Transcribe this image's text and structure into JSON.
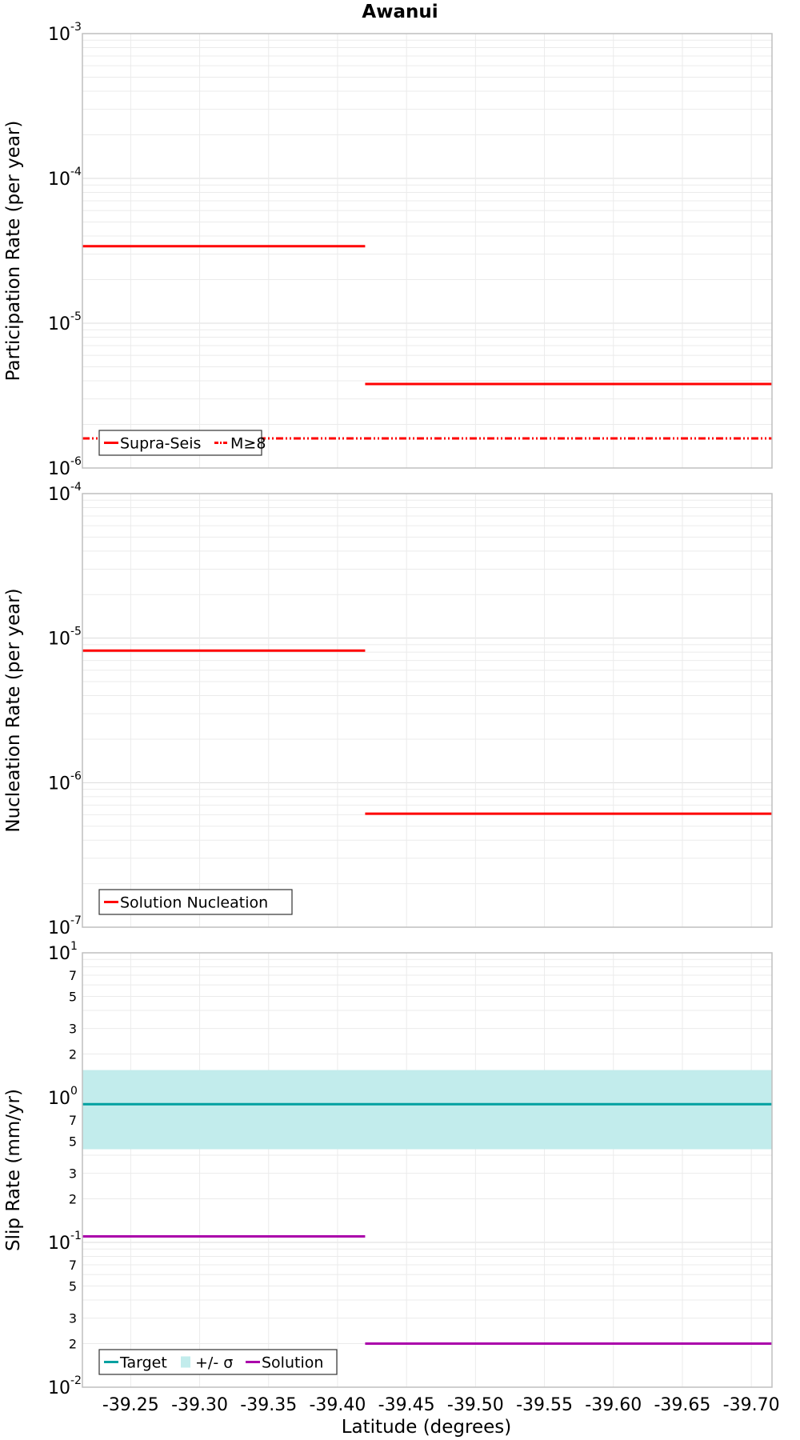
{
  "title": "Awanui",
  "xlabel": "Latitude (degrees)",
  "x_ticks": [
    "-39.25",
    "-39.30",
    "-39.35",
    "-39.40",
    "-39.45",
    "-39.50",
    "-39.55",
    "-39.60",
    "-39.65",
    "-39.70"
  ],
  "colors": {
    "red": "#ff0000",
    "teal": "#00a0a0",
    "band": "#c2ecec",
    "purple": "#aa00aa",
    "grid": "#ebebeb",
    "frame": "#bfbfbf"
  },
  "chart_data": [
    {
      "type": "line",
      "ylabel": "Participation Rate (per year)",
      "yscale": "log",
      "ylim": [
        1e-06,
        0.001
      ],
      "xlim": [
        -39.215,
        -39.715
      ],
      "y_ticks": [
        {
          "base": "10",
          "exp": "-6"
        },
        {
          "base": "10",
          "exp": "-5"
        },
        {
          "base": "10",
          "exp": "-4"
        },
        {
          "base": "10",
          "exp": "-3"
        }
      ],
      "series": [
        {
          "name": "Supra-Seis",
          "style": "solid",
          "color": "#ff0000",
          "segments": [
            {
              "x": [
                -39.215,
                -39.42
              ],
              "y": 3.4e-05
            },
            {
              "x": [
                -39.42,
                -39.715
              ],
              "y": 3.8e-06
            }
          ]
        },
        {
          "name": "M≥8",
          "style": "dash-dot-dot",
          "color": "#ff0000",
          "segments": [
            {
              "x": [
                -39.215,
                -39.715
              ],
              "y": 1.6e-06
            }
          ]
        }
      ],
      "legend": [
        "Supra-Seis",
        "M≥8"
      ],
      "legend_position": "bottom-left"
    },
    {
      "type": "line",
      "ylabel": "Nucleation Rate (per year)",
      "yscale": "log",
      "ylim": [
        1e-07,
        0.0001
      ],
      "xlim": [
        -39.215,
        -39.715
      ],
      "y_ticks": [
        {
          "base": "10",
          "exp": "-7"
        },
        {
          "base": "10",
          "exp": "-6"
        },
        {
          "base": "10",
          "exp": "-5"
        },
        {
          "base": "10",
          "exp": "-4"
        }
      ],
      "series": [
        {
          "name": "Solution Nucleation",
          "style": "solid",
          "color": "#ff0000",
          "segments": [
            {
              "x": [
                -39.215,
                -39.42
              ],
              "y": 8.2e-06
            },
            {
              "x": [
                -39.42,
                -39.715
              ],
              "y": 6.1e-07
            }
          ]
        }
      ],
      "legend": [
        "Solution Nucleation"
      ],
      "legend_position": "bottom-left"
    },
    {
      "type": "line",
      "ylabel": "Slip Rate (mm/yr)",
      "yscale": "log",
      "ylim": [
        0.01,
        10
      ],
      "xlim": [
        -39.215,
        -39.715
      ],
      "y_ticks": [
        {
          "base": "10",
          "exp": "-2"
        },
        {
          "base": "10",
          "exp": "-1"
        },
        {
          "base": "10",
          "exp": "0"
        },
        {
          "base": "10",
          "exp": "1"
        }
      ],
      "minor_ticks": [
        {
          "value": 0.02,
          "label": "2"
        },
        {
          "value": 0.03,
          "label": "3"
        },
        {
          "value": 0.05,
          "label": "5"
        },
        {
          "value": 0.07,
          "label": "7"
        },
        {
          "value": 0.2,
          "label": "2"
        },
        {
          "value": 0.3,
          "label": "3"
        },
        {
          "value": 0.5,
          "label": "5"
        },
        {
          "value": 0.7,
          "label": "7"
        },
        {
          "value": 2,
          "label": "2"
        },
        {
          "value": 3,
          "label": "3"
        },
        {
          "value": 5,
          "label": "5"
        },
        {
          "value": 7,
          "label": "7"
        }
      ],
      "band": {
        "name": "+/- σ",
        "low": 0.44,
        "high": 1.55,
        "color": "#c2ecec"
      },
      "series": [
        {
          "name": "Target",
          "style": "solid",
          "color": "#00a0a0",
          "segments": [
            {
              "x": [
                -39.215,
                -39.715
              ],
              "y": 0.9
            }
          ]
        },
        {
          "name": "Solution",
          "style": "solid",
          "color": "#aa00aa",
          "segments": [
            {
              "x": [
                -39.215,
                -39.42
              ],
              "y": 0.11
            },
            {
              "x": [
                -39.42,
                -39.715
              ],
              "y": 0.02
            }
          ]
        }
      ],
      "legend": [
        "Target",
        "+/- σ",
        "Solution"
      ],
      "legend_position": "bottom-left"
    }
  ]
}
